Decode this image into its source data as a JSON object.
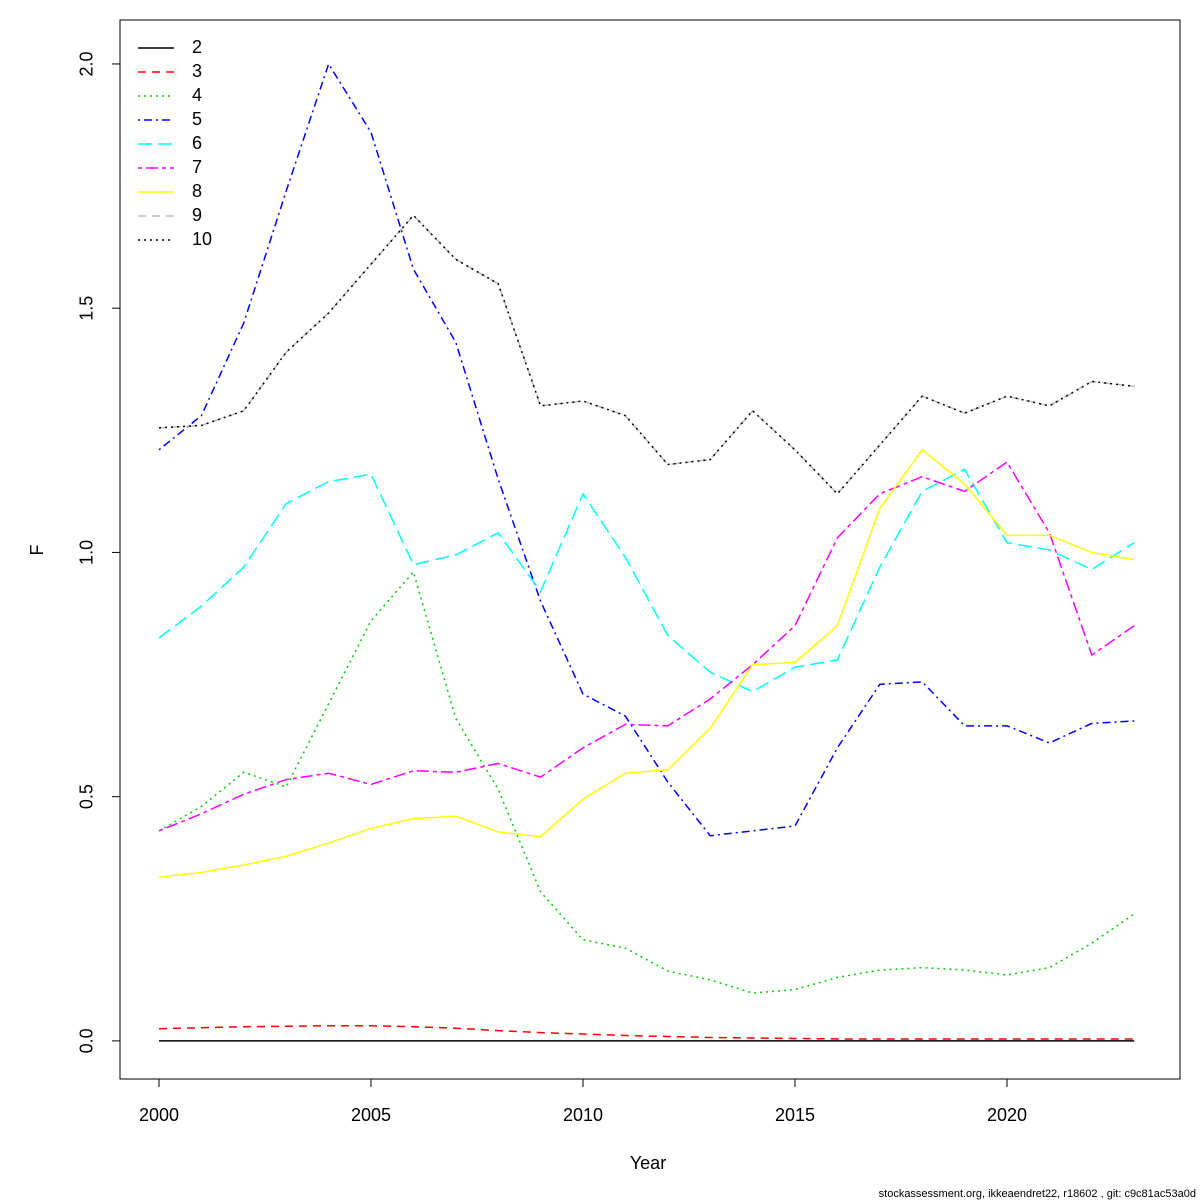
{
  "chart_data": {
    "type": "line",
    "xlabel": "Year",
    "ylabel": "F",
    "footer": "stockassessment.org, ikkeaendret22, r18602 , git: c9c81ac53a0d",
    "x": [
      2000,
      2001,
      2002,
      2003,
      2004,
      2005,
      2006,
      2007,
      2008,
      2009,
      2010,
      2011,
      2012,
      2013,
      2014,
      2015,
      2016,
      2017,
      2018,
      2019,
      2020,
      2021,
      2022,
      2023
    ],
    "xlim": [
      1999.08,
      2024.08
    ],
    "xticks": [
      2000,
      2005,
      2010,
      2015,
      2020
    ],
    "ylim": [
      -0.078,
      2.09
    ],
    "yticks": [
      {
        "value": 0,
        "label": "0.0"
      },
      0.5,
      {
        "value": 1,
        "label": "1.0"
      },
      1.5,
      {
        "value": 2,
        "label": "2.0"
      }
    ],
    "legend": "topleft",
    "series": [
      {
        "name": "2",
        "color": "#000000",
        "linestyle": "solid",
        "values": [
          0,
          0,
          0,
          0,
          0,
          0,
          0,
          0,
          0,
          0,
          0,
          0,
          0,
          0,
          0,
          0,
          0,
          0,
          0,
          0,
          0,
          0,
          0,
          0
        ]
      },
      {
        "name": "3",
        "color": "#ff0000",
        "linestyle": "dashed",
        "values": [
          0.025,
          0.027,
          0.029,
          0.03,
          0.031,
          0.031,
          0.029,
          0.026,
          0.021,
          0.017,
          0.014,
          0.011,
          0.009,
          0.007,
          0.006,
          0.005,
          0.004,
          0.004,
          0.004,
          0.004,
          0.004,
          0.004,
          0.004,
          0.004
        ]
      },
      {
        "name": "4",
        "color": "#00cd00",
        "linestyle": "dotted",
        "values": [
          0.43,
          0.48,
          0.55,
          0.52,
          0.69,
          0.86,
          0.96,
          0.66,
          0.515,
          0.305,
          0.207,
          0.19,
          0.143,
          0.125,
          0.098,
          0.105,
          0.13,
          0.145,
          0.15,
          0.145,
          0.135,
          0.15,
          0.2,
          0.26
        ]
      },
      {
        "name": "5",
        "color": "#0000ff",
        "linestyle": "dotdash",
        "values": [
          1.21,
          1.28,
          1.47,
          1.74,
          2.0,
          1.86,
          1.58,
          1.43,
          1.15,
          0.9,
          0.71,
          0.665,
          0.53,
          0.42,
          0.43,
          0.44,
          0.6,
          0.73,
          0.735,
          0.645,
          0.645,
          0.61,
          0.65,
          0.655
        ]
      },
      {
        "name": "6",
        "color": "#00ffff",
        "linestyle": "longdash",
        "values": [
          0.825,
          0.89,
          0.97,
          1.1,
          1.145,
          1.16,
          0.975,
          0.995,
          1.04,
          0.92,
          1.12,
          0.99,
          0.83,
          0.755,
          0.715,
          0.765,
          0.78,
          0.97,
          1.125,
          1.17,
          1.02,
          1.005,
          0.965,
          1.02
        ]
      },
      {
        "name": "7",
        "color": "#ff00ff",
        "linestyle": "twodash",
        "values": [
          0.43,
          0.465,
          0.505,
          0.535,
          0.548,
          0.525,
          0.553,
          0.55,
          0.568,
          0.54,
          0.6,
          0.648,
          0.645,
          0.7,
          0.77,
          0.85,
          1.03,
          1.12,
          1.155,
          1.125,
          1.185,
          1.04,
          0.79,
          0.85
        ]
      },
      {
        "name": "8",
        "color": "#ffff00",
        "linestyle": "solid",
        "values": [
          0.335,
          0.345,
          0.36,
          0.378,
          0.405,
          0.435,
          0.455,
          0.46,
          0.428,
          0.418,
          0.495,
          0.548,
          0.555,
          0.64,
          0.77,
          0.775,
          0.85,
          1.09,
          1.21,
          1.14,
          1.035,
          1.035,
          1.0,
          0.985
        ]
      },
      {
        "name": "9",
        "color": "#bebebe",
        "linestyle": "dashed",
        "values": [
          1.255,
          1.26,
          1.29,
          1.41,
          1.49,
          1.59,
          1.69,
          1.6,
          1.55,
          1.3,
          1.31,
          1.28,
          1.18,
          1.19,
          1.29,
          1.21,
          1.12,
          1.22,
          1.32,
          1.285,
          1.32,
          1.3,
          1.35,
          1.34
        ]
      },
      {
        "name": "10",
        "color": "#000000",
        "linestyle": "dotted",
        "values": [
          1.255,
          1.26,
          1.29,
          1.41,
          1.49,
          1.59,
          1.69,
          1.6,
          1.55,
          1.3,
          1.31,
          1.28,
          1.18,
          1.19,
          1.29,
          1.21,
          1.12,
          1.22,
          1.32,
          1.285,
          1.32,
          1.3,
          1.35,
          1.34
        ]
      }
    ]
  }
}
